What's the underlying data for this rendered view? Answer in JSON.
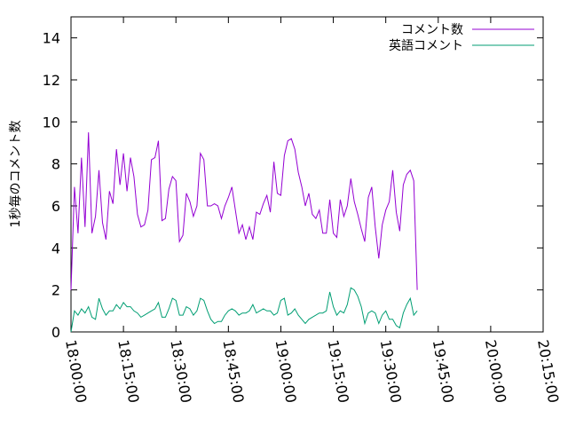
{
  "chart_data": {
    "type": "line",
    "xlabel": "",
    "ylabel": "1秒毎のコメント数",
    "ylim": [
      0,
      15
    ],
    "xlim": [
      "18:00:00",
      "20:15:00"
    ],
    "y_ticks": [
      "0",
      "2",
      "4",
      "6",
      "8",
      "10",
      "12",
      "14"
    ],
    "x_ticks": [
      "18:00:00",
      "18:15:00",
      "18:30:00",
      "18:45:00",
      "19:00:00",
      "19:15:00",
      "19:30:00",
      "19:45:00",
      "20:00:00",
      "20:15:00"
    ],
    "grid": false,
    "legend_position": "top-right",
    "series": [
      {
        "name": "コメント数",
        "color": "#9400d3",
        "points": [
          [
            "18:00:00",
            2.0
          ],
          [
            "18:01:00",
            6.9
          ],
          [
            "18:02:00",
            4.7
          ],
          [
            "18:03:00",
            8.3
          ],
          [
            "18:04:00",
            5.0
          ],
          [
            "18:05:00",
            9.5
          ],
          [
            "18:06:00",
            4.7
          ],
          [
            "18:07:00",
            5.5
          ],
          [
            "18:08:00",
            7.7
          ],
          [
            "18:09:00",
            5.2
          ],
          [
            "18:10:00",
            4.4
          ],
          [
            "18:11:00",
            6.7
          ],
          [
            "18:12:00",
            6.1
          ],
          [
            "18:13:00",
            8.7
          ],
          [
            "18:14:00",
            7.0
          ],
          [
            "18:15:00",
            8.5
          ],
          [
            "18:16:00",
            6.7
          ],
          [
            "18:17:00",
            8.3
          ],
          [
            "18:18:00",
            7.4
          ],
          [
            "18:19:00",
            5.6
          ],
          [
            "18:20:00",
            5.0
          ],
          [
            "18:21:00",
            5.1
          ],
          [
            "18:22:00",
            5.8
          ],
          [
            "18:23:00",
            8.2
          ],
          [
            "18:24:00",
            8.3
          ],
          [
            "18:25:00",
            9.1
          ],
          [
            "18:26:00",
            5.3
          ],
          [
            "18:27:00",
            5.4
          ],
          [
            "18:28:00",
            6.8
          ],
          [
            "18:29:00",
            7.4
          ],
          [
            "18:30:00",
            7.2
          ],
          [
            "18:31:00",
            4.3
          ],
          [
            "18:32:00",
            4.6
          ],
          [
            "18:33:00",
            6.6
          ],
          [
            "18:34:00",
            6.2
          ],
          [
            "18:35:00",
            5.5
          ],
          [
            "18:36:00",
            6.0
          ],
          [
            "18:37:00",
            8.5
          ],
          [
            "18:38:00",
            8.2
          ],
          [
            "18:39:00",
            6.0
          ],
          [
            "18:40:00",
            6.0
          ],
          [
            "18:41:00",
            6.1
          ],
          [
            "18:42:00",
            6.0
          ],
          [
            "18:43:00",
            5.4
          ],
          [
            "18:44:00",
            6.0
          ],
          [
            "18:45:00",
            6.4
          ],
          [
            "18:46:00",
            6.9
          ],
          [
            "18:47:00",
            5.8
          ],
          [
            "18:48:00",
            4.7
          ],
          [
            "18:49:00",
            5.1
          ],
          [
            "18:50:00",
            4.4
          ],
          [
            "18:51:00",
            5.0
          ],
          [
            "18:52:00",
            4.4
          ],
          [
            "18:53:00",
            5.7
          ],
          [
            "18:54:00",
            5.6
          ],
          [
            "18:55:00",
            6.1
          ],
          [
            "18:56:00",
            6.5
          ],
          [
            "18:57:00",
            5.7
          ],
          [
            "18:58:00",
            8.1
          ],
          [
            "18:59:00",
            6.6
          ],
          [
            "19:00:00",
            6.5
          ],
          [
            "19:01:00",
            8.4
          ],
          [
            "19:02:00",
            9.1
          ],
          [
            "19:03:00",
            9.2
          ],
          [
            "19:04:00",
            8.7
          ],
          [
            "19:05:00",
            7.6
          ],
          [
            "19:06:00",
            6.9
          ],
          [
            "19:07:00",
            6.0
          ],
          [
            "19:08:00",
            6.6
          ],
          [
            "19:09:00",
            5.6
          ],
          [
            "19:10:00",
            5.4
          ],
          [
            "19:11:00",
            5.8
          ],
          [
            "19:12:00",
            4.7
          ],
          [
            "19:13:00",
            4.7
          ],
          [
            "19:14:00",
            6.3
          ],
          [
            "19:15:00",
            4.7
          ],
          [
            "19:16:00",
            4.5
          ],
          [
            "19:17:00",
            6.3
          ],
          [
            "19:18:00",
            5.5
          ],
          [
            "19:19:00",
            6.0
          ],
          [
            "19:20:00",
            7.3
          ],
          [
            "19:21:00",
            6.2
          ],
          [
            "19:22:00",
            5.6
          ],
          [
            "19:23:00",
            4.9
          ],
          [
            "19:24:00",
            4.3
          ],
          [
            "19:25:00",
            6.4
          ],
          [
            "19:26:00",
            6.9
          ],
          [
            "19:27:00",
            5.0
          ],
          [
            "19:28:00",
            3.5
          ],
          [
            "19:29:00",
            5.1
          ],
          [
            "19:30:00",
            5.8
          ],
          [
            "19:31:00",
            6.2
          ],
          [
            "19:32:00",
            7.7
          ],
          [
            "19:33:00",
            5.7
          ],
          [
            "19:34:00",
            4.8
          ],
          [
            "19:35:00",
            7.0
          ],
          [
            "19:36:00",
            7.5
          ],
          [
            "19:37:00",
            7.7
          ],
          [
            "19:38:00",
            7.2
          ],
          [
            "19:39:00",
            2.0
          ]
        ]
      },
      {
        "name": "英語コメント",
        "color": "#009e73",
        "points": [
          [
            "18:00:00",
            0.0
          ],
          [
            "18:01:00",
            1.0
          ],
          [
            "18:02:00",
            0.8
          ],
          [
            "18:03:00",
            1.1
          ],
          [
            "18:04:00",
            0.9
          ],
          [
            "18:05:00",
            1.2
          ],
          [
            "18:06:00",
            0.7
          ],
          [
            "18:07:00",
            0.6
          ],
          [
            "18:08:00",
            1.6
          ],
          [
            "18:09:00",
            1.1
          ],
          [
            "18:10:00",
            0.8
          ],
          [
            "18:11:00",
            1.0
          ],
          [
            "18:12:00",
            1.0
          ],
          [
            "18:13:00",
            1.3
          ],
          [
            "18:14:00",
            1.1
          ],
          [
            "18:15:00",
            1.4
          ],
          [
            "18:16:00",
            1.2
          ],
          [
            "18:17:00",
            1.2
          ],
          [
            "18:18:00",
            1.0
          ],
          [
            "18:19:00",
            0.9
          ],
          [
            "18:20:00",
            0.7
          ],
          [
            "18:21:00",
            0.8
          ],
          [
            "18:22:00",
            0.9
          ],
          [
            "18:23:00",
            1.0
          ],
          [
            "18:24:00",
            1.1
          ],
          [
            "18:25:00",
            1.4
          ],
          [
            "18:26:00",
            0.7
          ],
          [
            "18:27:00",
            0.7
          ],
          [
            "18:28:00",
            1.1
          ],
          [
            "18:29:00",
            1.6
          ],
          [
            "18:30:00",
            1.5
          ],
          [
            "18:31:00",
            0.8
          ],
          [
            "18:32:00",
            0.8
          ],
          [
            "18:33:00",
            1.2
          ],
          [
            "18:34:00",
            1.1
          ],
          [
            "18:35:00",
            0.8
          ],
          [
            "18:36:00",
            1.0
          ],
          [
            "18:37:00",
            1.6
          ],
          [
            "18:38:00",
            1.5
          ],
          [
            "18:39:00",
            1.0
          ],
          [
            "18:40:00",
            0.6
          ],
          [
            "18:41:00",
            0.4
          ],
          [
            "18:42:00",
            0.5
          ],
          [
            "18:43:00",
            0.5
          ],
          [
            "18:44:00",
            0.8
          ],
          [
            "18:45:00",
            1.0
          ],
          [
            "18:46:00",
            1.1
          ],
          [
            "18:47:00",
            1.0
          ],
          [
            "18:48:00",
            0.8
          ],
          [
            "18:49:00",
            0.9
          ],
          [
            "18:50:00",
            0.9
          ],
          [
            "18:51:00",
            1.0
          ],
          [
            "18:52:00",
            1.3
          ],
          [
            "18:53:00",
            0.9
          ],
          [
            "18:54:00",
            1.0
          ],
          [
            "18:55:00",
            1.1
          ],
          [
            "18:56:00",
            1.0
          ],
          [
            "18:57:00",
            1.0
          ],
          [
            "18:58:00",
            0.8
          ],
          [
            "18:59:00",
            0.9
          ],
          [
            "19:00:00",
            1.5
          ],
          [
            "19:01:00",
            1.6
          ],
          [
            "19:02:00",
            0.8
          ],
          [
            "19:03:00",
            0.9
          ],
          [
            "19:04:00",
            1.1
          ],
          [
            "19:05:00",
            0.8
          ],
          [
            "19:06:00",
            0.6
          ],
          [
            "19:07:00",
            0.4
          ],
          [
            "19:08:00",
            0.6
          ],
          [
            "19:09:00",
            0.7
          ],
          [
            "19:10:00",
            0.8
          ],
          [
            "19:11:00",
            0.9
          ],
          [
            "19:12:00",
            0.9
          ],
          [
            "19:13:00",
            1.0
          ],
          [
            "19:14:00",
            1.9
          ],
          [
            "19:15:00",
            1.2
          ],
          [
            "19:16:00",
            0.8
          ],
          [
            "19:17:00",
            1.0
          ],
          [
            "19:18:00",
            0.9
          ],
          [
            "19:19:00",
            1.3
          ],
          [
            "19:20:00",
            2.1
          ],
          [
            "19:21:00",
            2.0
          ],
          [
            "19:22:00",
            1.7
          ],
          [
            "19:23:00",
            1.2
          ],
          [
            "19:24:00",
            0.4
          ],
          [
            "19:25:00",
            0.9
          ],
          [
            "19:26:00",
            1.0
          ],
          [
            "19:27:00",
            0.9
          ],
          [
            "19:28:00",
            0.4
          ],
          [
            "19:29:00",
            0.8
          ],
          [
            "19:30:00",
            1.0
          ],
          [
            "19:31:00",
            0.6
          ],
          [
            "19:32:00",
            0.6
          ],
          [
            "19:33:00",
            0.3
          ],
          [
            "19:34:00",
            0.2
          ],
          [
            "19:35:00",
            0.9
          ],
          [
            "19:36:00",
            1.3
          ],
          [
            "19:37:00",
            1.6
          ],
          [
            "19:38:00",
            0.8
          ],
          [
            "19:39:00",
            1.0
          ]
        ]
      }
    ]
  }
}
